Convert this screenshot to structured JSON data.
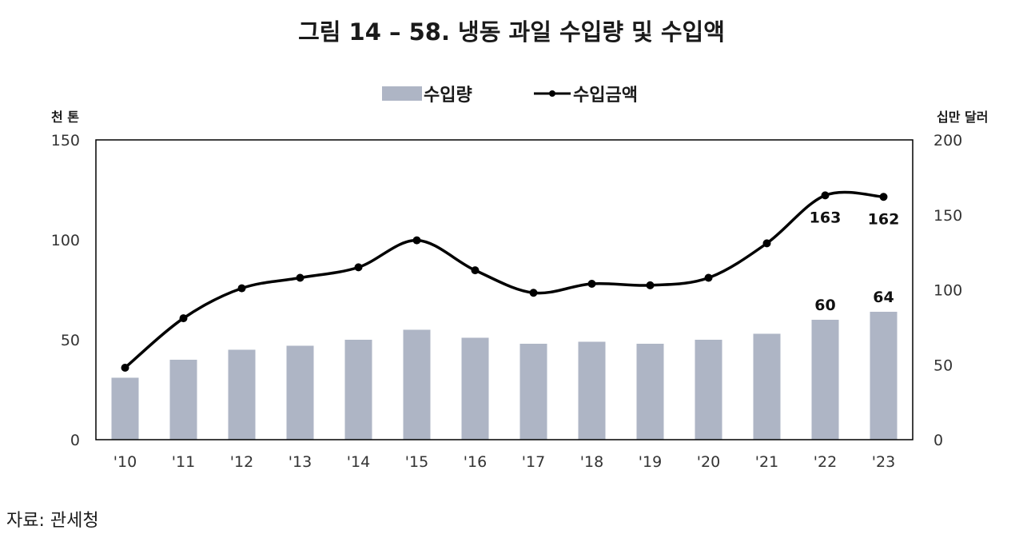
{
  "chart_data": {
    "type": "bar",
    "title": "그림 14 – 58.  냉동 과일 수입량 및 수입액",
    "categories": [
      "'10",
      "'11",
      "'12",
      "'13",
      "'14",
      "'15",
      "'16",
      "'17",
      "'18",
      "'19",
      "'20",
      "'21",
      "'22",
      "'23"
    ],
    "series": [
      {
        "name": "수입량",
        "type": "bar",
        "axis": "left",
        "values": [
          31,
          40,
          45,
          47,
          50,
          55,
          51,
          48,
          49,
          48,
          50,
          53,
          60,
          64
        ],
        "color": "#aeb5c5"
      },
      {
        "name": "수입금액",
        "type": "line",
        "axis": "right",
        "values": [
          48,
          81,
          101,
          108,
          115,
          133,
          113,
          98,
          104,
          103,
          108,
          131,
          163,
          162
        ],
        "color": "#000000"
      }
    ],
    "ylabel_left": "천 톤",
    "ylabel_right": "십만 달러",
    "ylim_left": [
      0,
      150
    ],
    "ylim_right": [
      0,
      200
    ],
    "yticks_left": [
      "0",
      "50",
      "100",
      "150"
    ],
    "yticks_right": [
      "0",
      "50",
      "100",
      "150",
      "200"
    ],
    "data_labels": [
      {
        "series": "수입금액",
        "index": 12,
        "text": "163"
      },
      {
        "series": "수입금액",
        "index": 13,
        "text": "162"
      },
      {
        "series": "수입량",
        "index": 12,
        "text": "60"
      },
      {
        "series": "수입량",
        "index": 13,
        "text": "64"
      }
    ],
    "legend_position": "top-center",
    "grid": false
  },
  "source": "자료: 관세청"
}
